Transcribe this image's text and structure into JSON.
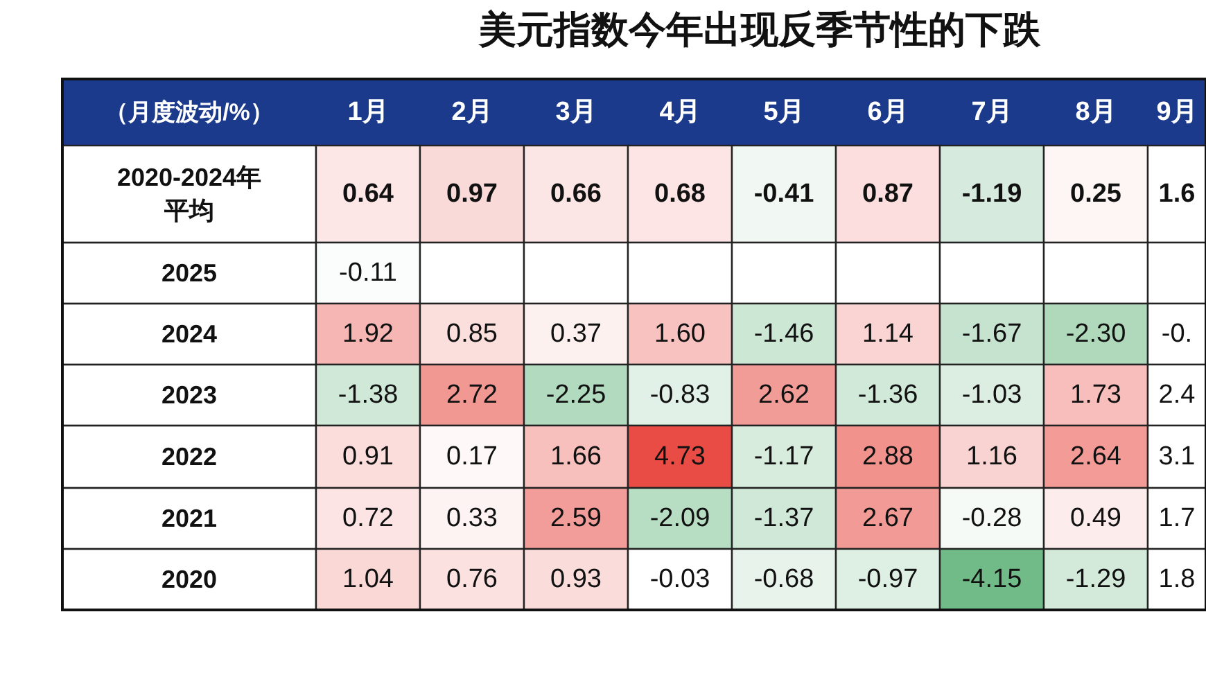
{
  "chart_data": {
    "type": "heatmap",
    "title": "美元指数今年出现反季节性的下跌",
    "ylabel": "（月度波动/%）",
    "categories": [
      "1月",
      "2月",
      "3月",
      "4月",
      "5月",
      "6月",
      "7月",
      "8月",
      "9月"
    ],
    "y_categories": [
      "2020-2024年平均",
      "2025",
      "2024",
      "2023",
      "2022",
      "2021",
      "2020"
    ],
    "cells": [
      [
        0.64,
        0.97,
        0.66,
        0.68,
        -0.41,
        0.87,
        -1.19,
        0.25,
        null
      ],
      [
        -0.11,
        null,
        null,
        null,
        null,
        null,
        null,
        null,
        null
      ],
      [
        1.92,
        0.85,
        0.37,
        1.6,
        -1.46,
        1.14,
        -1.67,
        -2.3,
        null
      ],
      [
        -1.38,
        2.72,
        -2.25,
        -0.83,
        2.62,
        -1.36,
        -1.03,
        1.73,
        null
      ],
      [
        0.91,
        0.17,
        1.66,
        4.73,
        -1.17,
        2.88,
        1.16,
        2.64,
        null
      ],
      [
        0.72,
        0.33,
        2.59,
        -2.09,
        -1.37,
        2.67,
        -0.28,
        0.49,
        null
      ],
      [
        1.04,
        0.76,
        0.93,
        -0.03,
        -0.68,
        -0.97,
        -4.15,
        -1.29,
        null
      ]
    ],
    "cell_labels": [
      [
        "0.64",
        "0.97",
        "0.66",
        "0.68",
        "-0.41",
        "0.87",
        "-1.19",
        "0.25",
        "1.6"
      ],
      [
        "-0.11",
        null,
        null,
        null,
        null,
        null,
        null,
        null,
        null
      ],
      [
        "1.92",
        "0.85",
        "0.37",
        "1.60",
        "-1.46",
        "1.14",
        "-1.67",
        "-2.30",
        "-0."
      ],
      [
        "-1.38",
        "2.72",
        "-2.25",
        "-0.83",
        "2.62",
        "-1.36",
        "-1.03",
        "1.73",
        "2.4"
      ],
      [
        "0.91",
        "0.17",
        "1.66",
        "4.73",
        "-1.17",
        "2.88",
        "1.16",
        "2.64",
        "3.1"
      ],
      [
        "0.72",
        "0.33",
        "2.59",
        "-2.09",
        "-1.37",
        "2.67",
        "-0.28",
        "0.49",
        "1.7"
      ],
      [
        "1.04",
        "0.76",
        "0.93",
        "-0.03",
        "-0.68",
        "-0.97",
        "-4.15",
        "-1.29",
        "1.8"
      ]
    ]
  }
}
